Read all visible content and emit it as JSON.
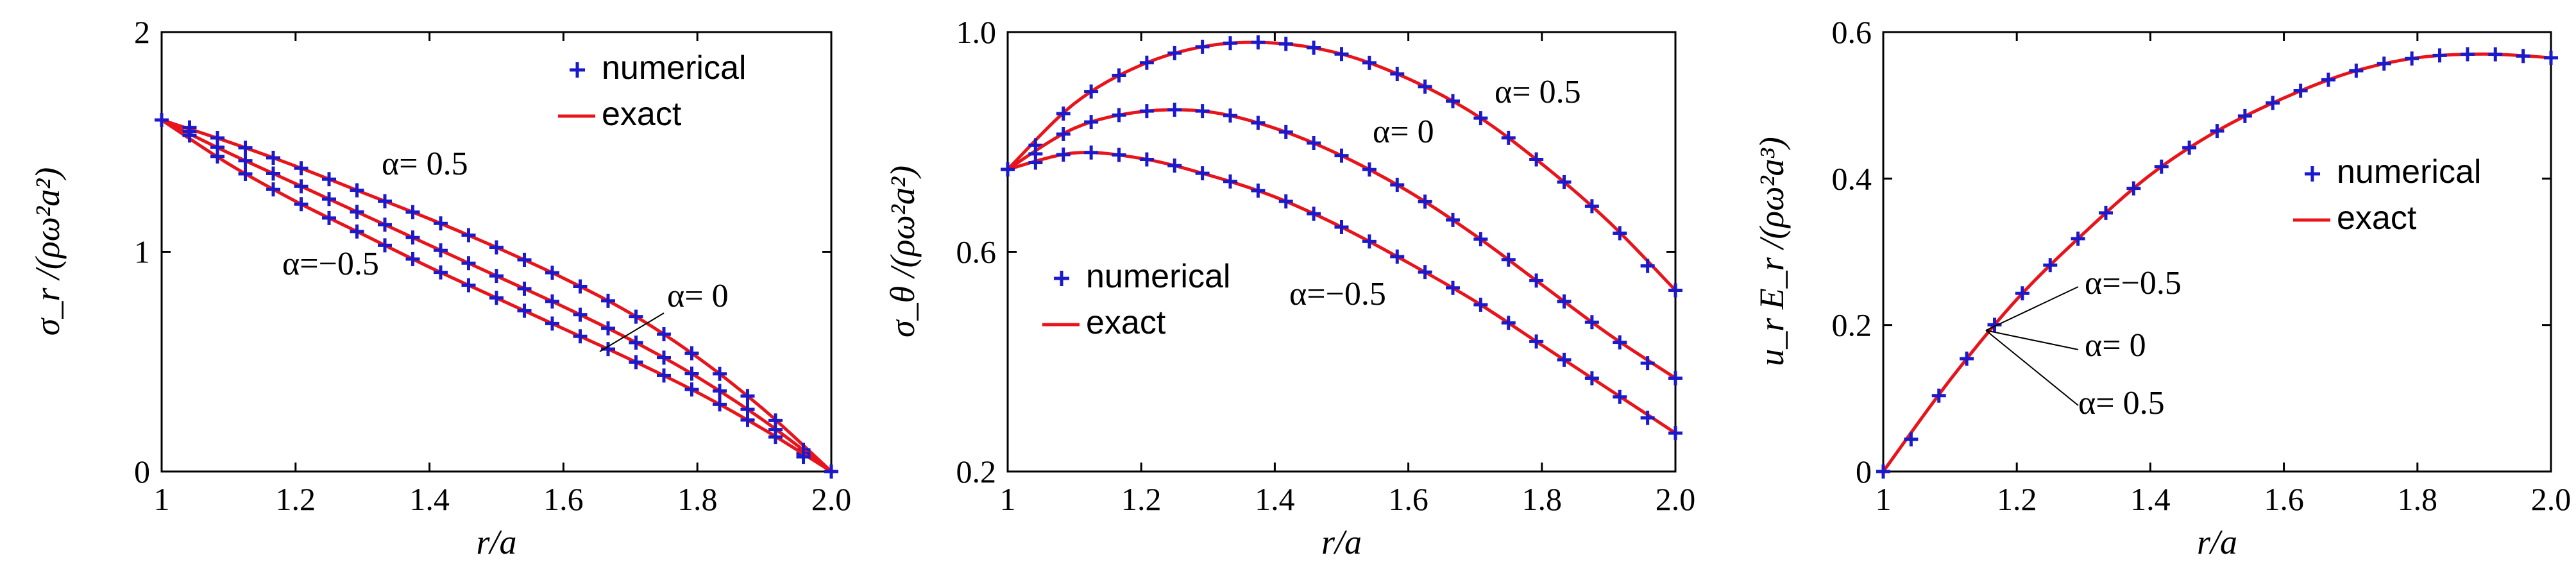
{
  "chart_data": [
    {
      "type": "line",
      "panel": "left",
      "xlabel": "r/a",
      "ylabel": "σ_r /(ρω²a²)",
      "xlim": [
        1,
        2
      ],
      "ylim": [
        0,
        2
      ],
      "xticks": [
        "1",
        "1.2",
        "1.4",
        "1.6",
        "1.8",
        "2.0"
      ],
      "yticks": [
        "0",
        "1",
        "2"
      ],
      "legend": {
        "placement": "top-right",
        "entries": [
          "numerical",
          "exact"
        ]
      },
      "annotations": [
        "α= 0.5",
        "α= 0",
        "α=−0.5"
      ],
      "series": [
        {
          "x": [
            1,
            1.1,
            1.2,
            1.3,
            1.4,
            1.5,
            1.6,
            1.7,
            1.8,
            1.9,
            2.0
          ],
          "values": [
            1.6,
            1.5,
            1.39,
            1.27,
            1.15,
            1.02,
            0.88,
            0.72,
            0.52,
            0.28,
            0
          ]
        },
        {
          "x": [
            1,
            1.1,
            1.2,
            1.3,
            1.4,
            1.5,
            1.6,
            1.7,
            1.8,
            1.9,
            2.0
          ],
          "values": [
            1.6,
            1.45,
            1.31,
            1.17,
            1.03,
            0.89,
            0.75,
            0.6,
            0.43,
            0.23,
            0
          ]
        },
        {
          "x": [
            1,
            1.1,
            1.2,
            1.3,
            1.4,
            1.5,
            1.6,
            1.7,
            1.8,
            1.9,
            2.0
          ],
          "values": [
            1.6,
            1.4,
            1.23,
            1.08,
            0.93,
            0.79,
            0.65,
            0.51,
            0.36,
            0.19,
            0
          ]
        }
      ]
    },
    {
      "type": "line",
      "panel": "middle",
      "xlabel": "r/a",
      "ylabel": "σ_θ /(ρω²a²)",
      "xlim": [
        1,
        2
      ],
      "ylim": [
        0.2,
        1.0
      ],
      "xticks": [
        "1",
        "1.2",
        "1.4",
        "1.6",
        "1.8",
        "2.0"
      ],
      "yticks": [
        "0.2",
        "0.6",
        "1.0"
      ],
      "legend": {
        "placement": "center-left",
        "entries": [
          "numerical",
          "exact"
        ]
      },
      "annotations": [
        "α= 0.5",
        "α= 0",
        "α=−0.5"
      ],
      "series": [
        {
          "x": [
            1,
            1.1,
            1.2,
            1.3,
            1.4,
            1.5,
            1.6,
            1.7,
            1.8,
            1.9,
            2.0
          ],
          "values": [
            0.75,
            0.87,
            0.94,
            0.975,
            0.98,
            0.96,
            0.915,
            0.85,
            0.76,
            0.655,
            0.53
          ]
        },
        {
          "x": [
            1,
            1.1,
            1.2,
            1.3,
            1.4,
            1.5,
            1.6,
            1.7,
            1.8,
            1.9,
            2.0
          ],
          "values": [
            0.75,
            0.825,
            0.855,
            0.855,
            0.825,
            0.775,
            0.71,
            0.63,
            0.54,
            0.45,
            0.37
          ]
        },
        {
          "x": [
            1,
            1.1,
            1.2,
            1.3,
            1.4,
            1.5,
            1.6,
            1.7,
            1.8,
            1.9,
            2.0
          ],
          "values": [
            0.75,
            0.78,
            0.77,
            0.74,
            0.7,
            0.645,
            0.58,
            0.51,
            0.43,
            0.35,
            0.27
          ]
        }
      ]
    },
    {
      "type": "line",
      "panel": "right",
      "xlabel": "r/a",
      "ylabel": "u_r E_r /(ρω²a³)",
      "xlim": [
        1,
        2
      ],
      "ylim": [
        0,
        0.6
      ],
      "xticks": [
        "1",
        "1.2",
        "1.4",
        "1.6",
        "1.8",
        "2.0"
      ],
      "yticks": [
        "0",
        "0.2",
        "0.4",
        "0.6"
      ],
      "legend": {
        "placement": "center-right",
        "entries": [
          "numerical",
          "exact"
        ]
      },
      "annotations": [
        "α=−0.5",
        "α= 0",
        "α= 0.5"
      ],
      "series": [
        {
          "x": [
            1,
            1.1,
            1.2,
            1.3,
            1.4,
            1.5,
            1.6,
            1.7,
            1.8,
            1.9,
            2.0
          ],
          "values": [
            0,
            0.125,
            0.235,
            0.325,
            0.405,
            0.465,
            0.51,
            0.545,
            0.565,
            0.57,
            0.565
          ]
        }
      ]
    }
  ],
  "styles": {
    "marker_color": "#1a1acc",
    "line_color": "#e8141b"
  }
}
